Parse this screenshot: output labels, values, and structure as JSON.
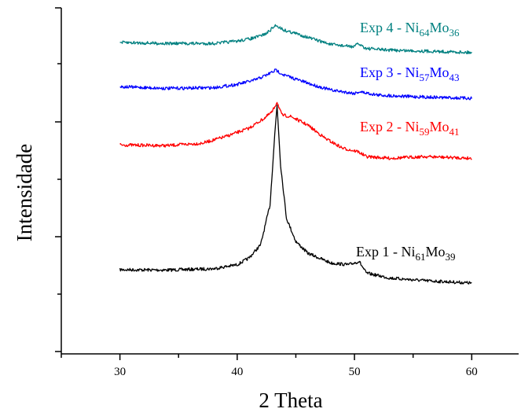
{
  "chart_data": {
    "type": "line",
    "xlabel": "2 Theta",
    "ylabel": "Intensidade",
    "xlim": [
      25,
      64
    ],
    "x_ticks": [
      30,
      40,
      50,
      60
    ],
    "y_tick_labels_shown": false,
    "ylim": [
      0,
      1
    ],
    "grid": false,
    "legend": "none",
    "series": [
      {
        "name": "Exp 1 - Ni61Mo39",
        "label": {
          "text": "Exp 1 - Ni",
          "sub1": "61",
          "mid": "Mo",
          "sub2": "39"
        },
        "color": "#000000",
        "baseline_start": 0.265,
        "baseline_end": 0.225,
        "x": [
          30,
          34,
          38,
          40,
          41,
          42,
          42.8,
          43.2,
          43.4,
          43.7,
          44.2,
          45,
          46,
          48,
          49.5,
          50.4,
          51,
          53,
          56,
          60
        ],
        "y": [
          0.265,
          0.264,
          0.268,
          0.28,
          0.3,
          0.34,
          0.46,
          0.67,
          0.76,
          0.58,
          0.42,
          0.35,
          0.315,
          0.285,
          0.28,
          0.29,
          0.255,
          0.24,
          0.232,
          0.225
        ]
      },
      {
        "name": "Exp 2 - Ni59Mo41",
        "label": {
          "text": "Exp 2 - Ni",
          "sub1": "59",
          "mid": "Mo",
          "sub2": "41"
        },
        "color": "#ff0000",
        "x": [
          30,
          34,
          37,
          39,
          41,
          42.3,
          43,
          43.4,
          43.8,
          44.6,
          46,
          47.5,
          49,
          50.3,
          51,
          53,
          56,
          60
        ],
        "y": [
          0.64,
          0.638,
          0.645,
          0.665,
          0.69,
          0.72,
          0.74,
          0.77,
          0.73,
          0.725,
          0.7,
          0.66,
          0.63,
          0.62,
          0.605,
          0.6,
          0.605,
          0.6
        ]
      },
      {
        "name": "Exp 3 - Ni57Mo43",
        "label": {
          "text": "Exp 3 - Ni",
          "sub1": "57",
          "mid": "Mo",
          "sub2": "43"
        },
        "color": "#0000ff",
        "x": [
          30,
          34,
          38,
          40,
          41.5,
          42.5,
          43.3,
          44,
          45,
          46.5,
          48,
          50,
          50.4,
          52,
          55,
          60
        ],
        "y": [
          0.815,
          0.81,
          0.812,
          0.822,
          0.835,
          0.85,
          0.865,
          0.85,
          0.838,
          0.82,
          0.805,
          0.795,
          0.8,
          0.79,
          0.785,
          0.78
        ]
      },
      {
        "name": "Exp 4 - Ni64Mo36",
        "label": {
          "text": "Exp 4 - Ni",
          "sub1": "64",
          "mid": "Mo",
          "sub2": "36"
        },
        "color": "#008080",
        "x": [
          30,
          34,
          38,
          40,
          41.5,
          42.5,
          43.3,
          44,
          45,
          46.5,
          48,
          50,
          50.3,
          51,
          53,
          56,
          60
        ],
        "y": [
          0.948,
          0.945,
          0.945,
          0.952,
          0.962,
          0.975,
          1.0,
          0.985,
          0.975,
          0.958,
          0.942,
          0.935,
          0.945,
          0.93,
          0.925,
          0.922,
          0.918
        ]
      }
    ]
  }
}
